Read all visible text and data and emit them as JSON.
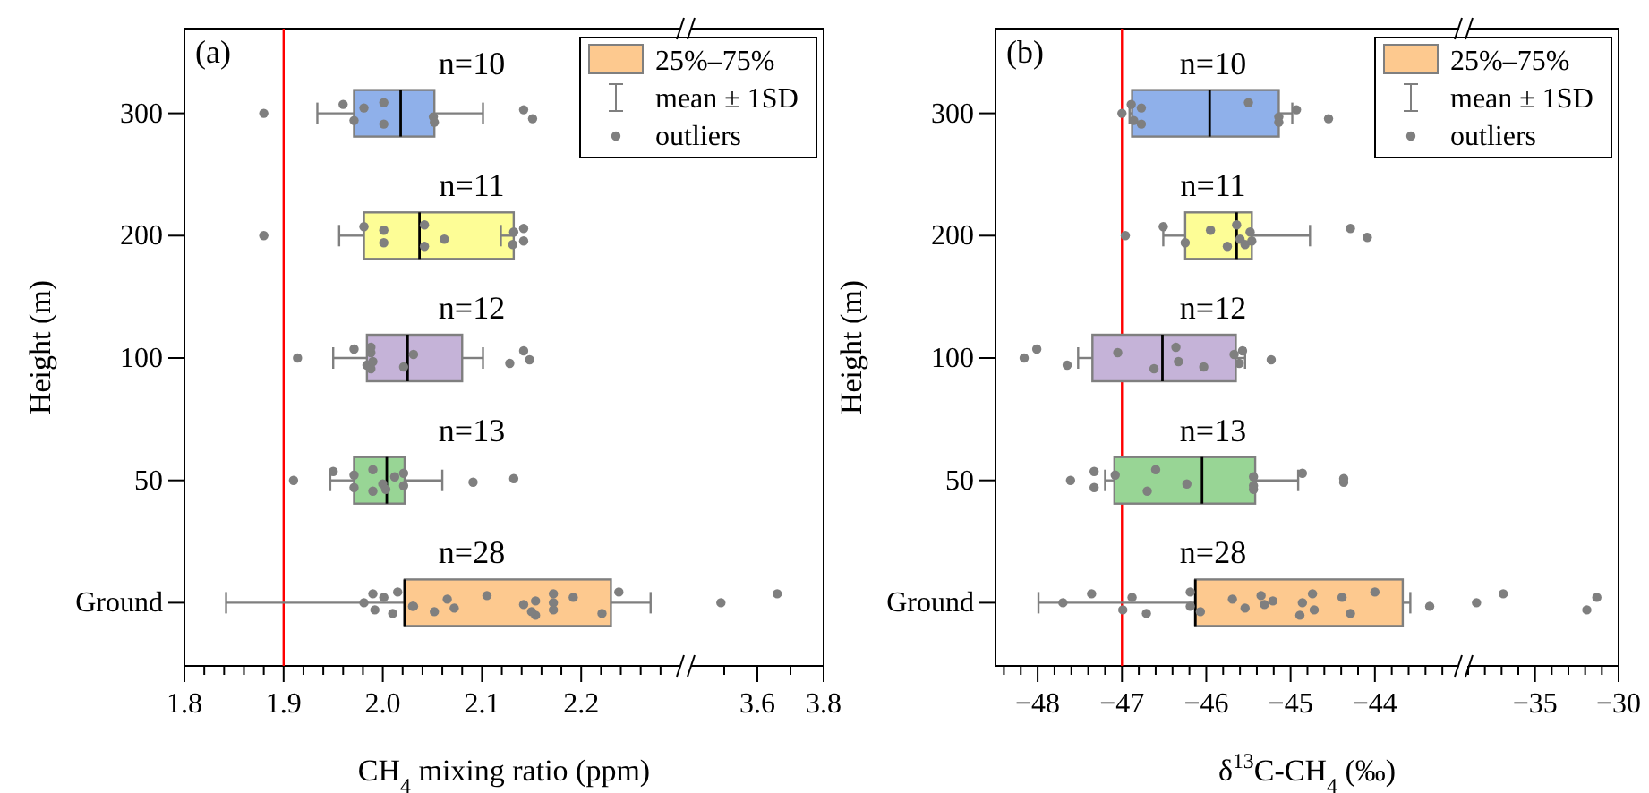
{
  "chart_data": [
    {
      "type": "box",
      "orientation": "horizontal",
      "title": "(a)",
      "xlabel": "CH$_{4}$ mixing ratio (ppm)",
      "ylabel": "Height (m)",
      "categories": [
        "300",
        "200",
        "100",
        "50",
        "Ground"
      ],
      "xlim": [
        1.8,
        2.3
      ],
      "xticks": [
        1.8,
        {
          "value": 1.82,
          "label": null
        },
        {
          "value": 1.84,
          "label": null
        },
        {
          "value": 1.86,
          "label": null
        },
        {
          "value": 1.88,
          "label": null
        },
        1.9,
        {
          "value": 1.92,
          "label": null
        },
        {
          "value": 1.94,
          "label": null
        },
        {
          "value": 1.96,
          "label": null
        },
        {
          "value": 1.98,
          "label": null
        },
        {
          "value": 2,
          "label": "2.0"
        },
        {
          "value": 2.02,
          "label": null
        },
        {
          "value": 2.04,
          "label": null
        },
        {
          "value": 2.06,
          "label": null
        },
        {
          "value": 2.08,
          "label": null
        },
        2.1,
        {
          "value": 2.12,
          "label": null
        },
        {
          "value": 2.14,
          "label": null
        },
        {
          "value": 2.16,
          "label": null
        },
        {
          "value": 2.18,
          "label": null
        },
        2.2,
        {
          "value": 2.22,
          "label": null
        },
        {
          "value": 2.24,
          "label": null
        },
        {
          "value": 2.26,
          "label": null
        },
        {
          "value": 2.28,
          "label": null
        }
      ],
      "ref_lines": [
        {
          "axis": "x",
          "value": 1.9,
          "color": "#ff0000"
        }
      ],
      "legend": "top right",
      "annotations": [
        "mean ± 1SD",
        "n=10",
        "n=11",
        "n=12",
        "n=13",
        "n=28"
      ],
      "series": [
        {
          "name": "25%–75%",
          "color": "#fdc98f",
          "colors": [
            "#8fb0ea",
            "#fdfd96",
            "#c5b3d8",
            "#98d595",
            "#fdc98f"
          ],
          "boxes": [
            {
              "low": 1.934,
              "q1": 1.971,
              "median": 2.018,
              "q3": 2.052,
              "high": 2.101
            },
            {
              "low": 1.956,
              "q1": 1.981,
              "median": 2.037,
              "q3": 2.132,
              "high": 2.119
            },
            {
              "low": 1.95,
              "q1": 1.984,
              "median": 2.025,
              "q3": 2.08,
              "high": 2.101
            },
            {
              "low": 1.947,
              "q1": 1.971,
              "median": 2.004,
              "q3": 2.022,
              "high": 2.06
            },
            {
              "low": 1.842,
              "q1": 2.022,
              "median": 2.022,
              "q3": 2.23,
              "high": 2.27
            }
          ]
        },
        {
          "type": "scatter",
          "name": "outliers",
          "color": "#7f7f7f",
          "x": [
            "300",
            "300",
            "300",
            "300",
            "300",
            "300",
            "300",
            "300",
            "300",
            "300",
            "200",
            "200",
            "200",
            "200",
            "200",
            "200",
            "200",
            "200",
            "200",
            "200",
            "200",
            "100",
            "100",
            "100",
            "100",
            "100",
            "100",
            "100",
            "100",
            "100",
            "100",
            "100",
            "100",
            "50",
            "50",
            "50",
            "50",
            "50",
            "50",
            "50",
            "50",
            "50",
            "50",
            "50",
            "50",
            "50",
            "Ground",
            "Ground",
            "Ground",
            "Ground",
            "Ground",
            "Ground",
            "Ground",
            "Ground",
            "Ground",
            "Ground",
            "Ground",
            "Ground",
            "Ground",
            "Ground",
            "Ground",
            "Ground",
            "Ground",
            "Ground",
            "Ground",
            "Ground",
            "Ground",
            "Ground"
          ],
          "values": [
            1.88,
            1.96,
            1.971,
            1.981,
            2.001,
            2.001,
            2.051,
            2.052,
            2.142,
            2.151,
            1.88,
            1.981,
            2.001,
            2.001,
            2.042,
            2.042,
            2.062,
            2.131,
            2.132,
            2.142,
            2.142,
            1.914,
            1.971,
            1.984,
            1.988,
            1.988,
            1.988,
            1.99,
            2.021,
            2.031,
            2.128,
            2.142,
            2.148,
            1.91,
            1.95,
            1.971,
            1.971,
            1.99,
            1.99,
            2.0,
            2.003,
            2.012,
            2.021,
            2.021,
            2.091,
            2.132,
            1.981,
            1.99,
            1.992,
            2.001,
            2.01,
            2.015,
            2.031,
            2.052,
            2.065,
            2.072,
            2.105,
            2.142,
            2.154,
            2.154,
            2.172,
            2.172,
            2.172,
            2.192,
            2.221,
            2.238,
            2.03,
            2.15
          ]
        }
      ]
    },
    {
      "type": "scatter",
      "orientation": "horizontal",
      "tick_labels": "x",
      "categories": [
        "300",
        "200",
        "100",
        "50",
        "Ground"
      ],
      "xlim": [
        3.4,
        3.8
      ],
      "xticks": [
        {
          "value": 3.5,
          "label": null
        },
        3.6,
        {
          "value": 3.7,
          "label": null
        },
        3.8
      ],
      "series": [
        {
          "color": "#7f7f7f",
          "x": [
            "Ground",
            "Ground"
          ],
          "values": [
            3.49,
            3.66
          ]
        }
      ]
    },
    {
      "type": "box",
      "orientation": "horizontal",
      "title": "(b)",
      "xlabel": "δ$^{13}$C-CH$_{4}$ (‰)",
      "ylabel": "Height (m)",
      "categories": [
        "300",
        "200",
        "100",
        "50",
        "Ground"
      ],
      "xlim": [
        -48.5,
        -43
      ],
      "xticks": [
        {
          "value": -48.4,
          "label": null
        },
        {
          "value": -48.2,
          "label": null
        },
        {
          "value": -48,
          "label": "−48"
        },
        {
          "value": -47.8,
          "label": null
        },
        {
          "value": -47.6,
          "label": null
        },
        {
          "value": -47.4,
          "label": null
        },
        {
          "value": -47.2,
          "label": null
        },
        {
          "value": -47,
          "label": "−47"
        },
        {
          "value": -46.8,
          "label": null
        },
        {
          "value": -46.6,
          "label": null
        },
        {
          "value": -46.4,
          "label": null
        },
        {
          "value": -46.2,
          "label": null
        },
        {
          "value": -46,
          "label": "−46"
        },
        {
          "value": -45.8,
          "label": null
        },
        {
          "value": -45.6,
          "label": null
        },
        {
          "value": -45.4,
          "label": null
        },
        {
          "value": -45.2,
          "label": null
        },
        {
          "value": -45,
          "label": "−45"
        },
        {
          "value": -44.8,
          "label": null
        },
        {
          "value": -44.6,
          "label": null
        },
        {
          "value": -44.4,
          "label": null
        },
        {
          "value": -44.2,
          "label": null
        },
        {
          "value": -44,
          "label": "−44"
        },
        {
          "value": -43.8,
          "label": null
        },
        {
          "value": -43.6,
          "label": null
        },
        {
          "value": -43.4,
          "label": null
        },
        {
          "value": -43.2,
          "label": null
        }
      ],
      "ref_lines": [
        {
          "axis": "x",
          "value": -47,
          "color": "#ff0000"
        }
      ],
      "legend": "top right",
      "annotations": [
        "mean ± 1SD",
        "n=10",
        "n=11",
        "n=12",
        "n=13",
        "n=28"
      ],
      "series": [
        {
          "name": "25%–75%",
          "color": "#fdc98f",
          "colors": [
            "#8fb0ea",
            "#fdfd96",
            "#c5b3d8",
            "#98d595",
            "#fdc98f"
          ],
          "boxes": [
            {
              "low": -46.91,
              "q1": -46.88,
              "median": -45.96,
              "q3": -45.14,
              "high": -44.98
            },
            {
              "low": -46.51,
              "q1": -46.25,
              "median": -45.64,
              "q3": -45.46,
              "high": -44.77
            },
            {
              "low": -47.52,
              "q1": -47.35,
              "median": -46.52,
              "q3": -45.65,
              "high": -45.54
            },
            {
              "low": -47.2,
              "q1": -47.09,
              "median": -46.05,
              "q3": -45.42,
              "high": -44.91
            },
            {
              "low": -47.99,
              "q1": -46.13,
              "median": -46.13,
              "q3": -43.67,
              "high": -43.58
            }
          ]
        },
        {
          "type": "scatter",
          "name": "outliers",
          "color": "#7f7f7f",
          "x": [
            "300",
            "300",
            "300",
            "300",
            "300",
            "300",
            "300",
            "300",
            "300",
            "300",
            "200",
            "200",
            "200",
            "200",
            "200",
            "200",
            "200",
            "200",
            "200",
            "200",
            "200",
            "200",
            "100",
            "100",
            "100",
            "100",
            "100",
            "100",
            "100",
            "100",
            "100",
            "100",
            "100",
            "100",
            "50",
            "50",
            "50",
            "50",
            "50",
            "50",
            "50",
            "50",
            "50",
            "50",
            "50",
            "50",
            "50",
            "Ground",
            "Ground",
            "Ground",
            "Ground",
            "Ground",
            "Ground",
            "Ground",
            "Ground",
            "Ground",
            "Ground",
            "Ground",
            "Ground",
            "Ground",
            "Ground",
            "Ground",
            "Ground",
            "Ground",
            "Ground",
            "Ground",
            "Ground",
            "Ground"
          ],
          "values": [
            -47.0,
            -46.89,
            -46.86,
            -46.77,
            -46.77,
            -45.5,
            -45.14,
            -45.14,
            -44.93,
            -44.55,
            -46.96,
            -46.51,
            -46.25,
            -45.95,
            -45.75,
            -45.64,
            -45.6,
            -45.54,
            -45.48,
            -45.46,
            -44.29,
            -44.09,
            -48.16,
            -48.01,
            -47.65,
            -47.05,
            -46.62,
            -46.36,
            -46.33,
            -46.03,
            -45.67,
            -45.61,
            -45.57,
            -45.23,
            -47.61,
            -47.33,
            -47.33,
            -47.08,
            -46.7,
            -46.6,
            -46.23,
            -45.44,
            -45.44,
            -45.44,
            -44.86,
            -44.37,
            -44.37,
            -47.7,
            -47.36,
            -46.99,
            -46.88,
            -46.71,
            -46.19,
            -46.19,
            -46.07,
            -45.69,
            -45.54,
            -45.35,
            -45.31,
            -45.21,
            -44.89,
            -44.86,
            -44.74,
            -44.72,
            -44.39,
            -44.29,
            -44.0,
            -43.35
          ]
        }
      ]
    },
    {
      "type": "scatter",
      "orientation": "horizontal",
      "tick_labels": "x",
      "categories": [
        "300",
        "200",
        "100",
        "50",
        "Ground"
      ],
      "xlim": [
        -39,
        -30
      ],
      "xticks": [
        {
          "value": -39,
          "label": null
        },
        {
          "value": -38,
          "label": null
        },
        {
          "value": -37,
          "label": null
        },
        {
          "value": -36,
          "label": null
        },
        {
          "value": -35,
          "label": "−35"
        },
        {
          "value": -34,
          "label": null
        },
        {
          "value": -33,
          "label": null
        },
        {
          "value": -32,
          "label": null
        },
        {
          "value": -31,
          "label": null
        },
        {
          "value": -30,
          "label": "−30"
        }
      ],
      "series": [
        {
          "color": "#7f7f7f",
          "x": [
            "Ground",
            "Ground",
            "Ground",
            "Ground"
          ],
          "values": [
            -38.5,
            -36.9,
            -31.9,
            -31.3
          ]
        }
      ]
    }
  ]
}
